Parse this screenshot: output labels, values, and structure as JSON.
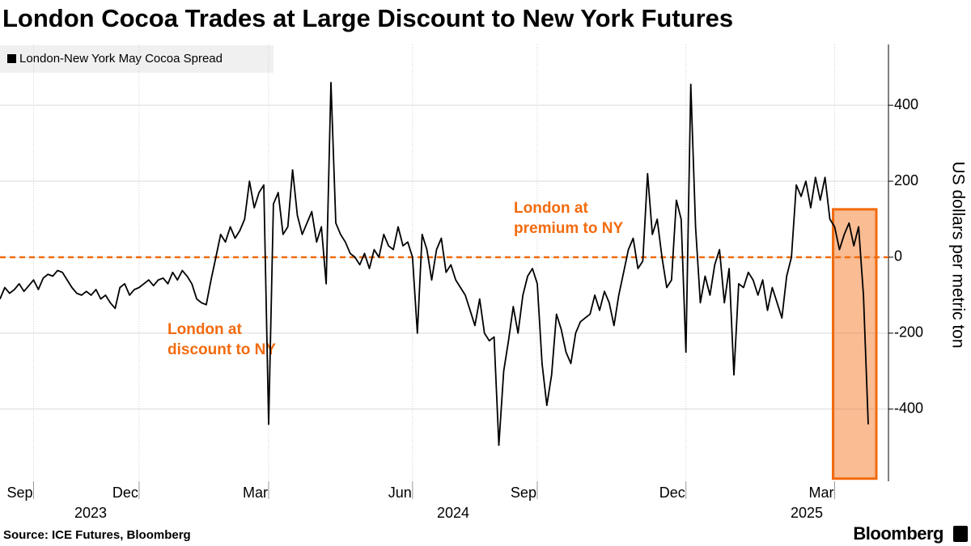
{
  "chart_data": {
    "type": "line",
    "title": "London Cocoa Trades at Large Discount to New York Futures",
    "y_axis_label": "US dollars per metric ton",
    "source": "Source: ICE Futures, Bloomberg",
    "brand": "Bloomberg",
    "years": [
      "2023",
      "2024",
      "2025"
    ],
    "annotations": [
      {
        "lines": [
          "London at",
          "discount to NY"
        ],
        "color": "#f26b0f"
      },
      {
        "lines": [
          "London at",
          "premium to NY"
        ],
        "color": "#f26b0f"
      }
    ],
    "reference_line": {
      "value": 0,
      "color": "#f26b0f"
    },
    "highlight": {
      "x": [
        174,
        181
      ],
      "y": [
        -583,
        126
      ],
      "color": "#f26b0f"
    },
    "ylim": [
      -590,
      560
    ],
    "yticks": [
      -400,
      -200,
      0,
      200,
      400
    ],
    "grid": true,
    "categories": [
      null,
      null,
      null,
      null,
      null,
      null,
      null,
      "Sep",
      null,
      null,
      null,
      null,
      null,
      null,
      null,
      null,
      null,
      null,
      null,
      null,
      null,
      null,
      null,
      null,
      null,
      null,
      null,
      null,
      null,
      "Dec",
      null,
      null,
      null,
      null,
      null,
      null,
      null,
      null,
      null,
      null,
      null,
      null,
      null,
      null,
      null,
      null,
      null,
      null,
      null,
      null,
      null,
      null,
      null,
      null,
      null,
      null,
      "Mar",
      null,
      null,
      null,
      null,
      null,
      null,
      null,
      null,
      null,
      null,
      null,
      null,
      null,
      null,
      null,
      null,
      null,
      null,
      null,
      null,
      null,
      null,
      null,
      null,
      null,
      null,
      null,
      null,
      null,
      "Jun",
      null,
      null,
      null,
      null,
      null,
      null,
      null,
      null,
      null,
      null,
      null,
      null,
      null,
      null,
      null,
      null,
      null,
      null,
      null,
      null,
      null,
      null,
      null,
      null,
      null,
      "Sep",
      null,
      null,
      null,
      null,
      null,
      null,
      null,
      null,
      null,
      null,
      null,
      null,
      null,
      null,
      null,
      null,
      null,
      null,
      null,
      null,
      null,
      null,
      null,
      null,
      null,
      null,
      null,
      null,
      null,
      null,
      "Dec",
      null,
      null,
      null,
      null,
      null,
      null,
      null,
      null,
      null,
      null,
      null,
      null,
      null,
      null,
      null,
      null,
      null,
      null,
      null,
      null,
      null,
      null,
      null,
      null,
      null,
      null,
      null,
      null,
      null,
      null,
      "Mar",
      null,
      null,
      null,
      null,
      null,
      null,
      null
    ],
    "series": [
      {
        "name": "London-New York May Cocoa Spread",
        "color": "#000000",
        "values": [
          -110,
          -80,
          -95,
          -85,
          -70,
          -90,
          -75,
          -60,
          -85,
          -55,
          -45,
          -50,
          -35,
          -40,
          -60,
          -80,
          -95,
          -100,
          -90,
          -100,
          -85,
          -110,
          -100,
          -120,
          -135,
          -80,
          -70,
          -100,
          -85,
          -80,
          -70,
          -60,
          -75,
          -60,
          -55,
          -70,
          -40,
          -60,
          -35,
          -50,
          -70,
          -110,
          -120,
          -125,
          -60,
          0,
          60,
          40,
          80,
          50,
          70,
          100,
          200,
          130,
          170,
          190,
          -440,
          140,
          170,
          60,
          80,
          230,
          110,
          60,
          90,
          120,
          40,
          80,
          -70,
          460,
          90,
          60,
          40,
          10,
          0,
          -20,
          10,
          -30,
          20,
          0,
          60,
          30,
          20,
          80,
          30,
          40,
          0,
          -200,
          60,
          20,
          -60,
          20,
          50,
          -40,
          -20,
          -60,
          -80,
          -100,
          -140,
          -180,
          -110,
          -200,
          -220,
          -210,
          -495,
          -300,
          -220,
          -130,
          -200,
          -100,
          -50,
          -30,
          -70,
          -280,
          -390,
          -310,
          -150,
          -190,
          -250,
          -280,
          -200,
          -170,
          -160,
          -150,
          -100,
          -140,
          -90,
          -120,
          -180,
          -100,
          -40,
          20,
          50,
          -30,
          -10,
          220,
          60,
          100,
          0,
          -80,
          -60,
          150,
          100,
          -250,
          455,
          80,
          -120,
          -50,
          -100,
          -20,
          20,
          -120,
          -30,
          -310,
          -70,
          -80,
          -40,
          -60,
          -100,
          -60,
          -140,
          -80,
          -120,
          -160,
          -50,
          0,
          190,
          160,
          200,
          130,
          210,
          150,
          210,
          100,
          80,
          20,
          60,
          90,
          30,
          80,
          -100,
          -440
        ]
      }
    ]
  }
}
